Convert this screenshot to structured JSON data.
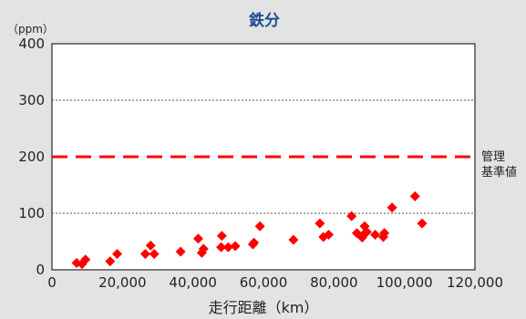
{
  "chart_data": {
    "type": "scatter",
    "title": "鉄分",
    "ylabel_unit": "（ppm）",
    "xlabel": "走行距離（km）",
    "xlim": [
      0,
      120000
    ],
    "ylim": [
      0,
      400
    ],
    "x_ticks": [
      0,
      20000,
      40000,
      60000,
      80000,
      100000,
      120000
    ],
    "x_tick_labels": [
      "0",
      "20,000",
      "40,000",
      "60,000",
      "80,000",
      "100,000",
      "120,000"
    ],
    "y_ticks": [
      0,
      100,
      200,
      300,
      400
    ],
    "y_tick_labels": [
      "0",
      "100",
      "200",
      "300",
      "400"
    ],
    "grid": "horizontal dotted at 100 and 300",
    "reference_line": {
      "y": 200,
      "label_lines": [
        "管理",
        "基準値"
      ],
      "color": "#ff0000",
      "style": "dashed"
    },
    "marker": {
      "shape": "diamond",
      "color": "#ff0000"
    },
    "points": [
      {
        "x": 7000,
        "y": 12
      },
      {
        "x": 8500,
        "y": 10
      },
      {
        "x": 9500,
        "y": 18
      },
      {
        "x": 16500,
        "y": 15
      },
      {
        "x": 18500,
        "y": 28
      },
      {
        "x": 26500,
        "y": 28
      },
      {
        "x": 28000,
        "y": 43
      },
      {
        "x": 29000,
        "y": 28
      },
      {
        "x": 36500,
        "y": 32
      },
      {
        "x": 41500,
        "y": 55
      },
      {
        "x": 42500,
        "y": 30
      },
      {
        "x": 43000,
        "y": 37
      },
      {
        "x": 48000,
        "y": 40
      },
      {
        "x": 48200,
        "y": 60
      },
      {
        "x": 50000,
        "y": 40
      },
      {
        "x": 52000,
        "y": 42
      },
      {
        "x": 57000,
        "y": 45
      },
      {
        "x": 57300,
        "y": 48
      },
      {
        "x": 59000,
        "y": 77
      },
      {
        "x": 68500,
        "y": 53
      },
      {
        "x": 76000,
        "y": 82
      },
      {
        "x": 77000,
        "y": 58
      },
      {
        "x": 78500,
        "y": 62
      },
      {
        "x": 85000,
        "y": 95
      },
      {
        "x": 86500,
        "y": 65
      },
      {
        "x": 88000,
        "y": 57
      },
      {
        "x": 88500,
        "y": 63
      },
      {
        "x": 88700,
        "y": 77
      },
      {
        "x": 89300,
        "y": 67
      },
      {
        "x": 91700,
        "y": 62
      },
      {
        "x": 94000,
        "y": 58
      },
      {
        "x": 94300,
        "y": 65
      },
      {
        "x": 96500,
        "y": 110
      },
      {
        "x": 103000,
        "y": 130
      },
      {
        "x": 105000,
        "y": 82
      }
    ]
  }
}
